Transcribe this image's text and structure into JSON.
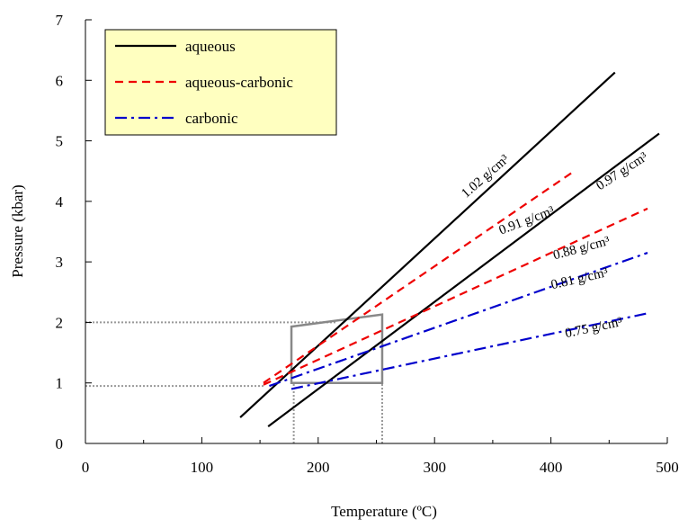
{
  "chart_data": {
    "type": "line",
    "title": "",
    "xlabel": "Temperature (ºC)",
    "ylabel": "Pressure (kbar)",
    "xlim": [
      0,
      500
    ],
    "ylim": [
      0,
      7
    ],
    "xticks": [
      0,
      100,
      200,
      300,
      400,
      500
    ],
    "yticks": [
      0,
      1,
      2,
      3,
      4,
      5,
      6,
      7
    ],
    "x_tick_labels": [
      "0",
      "100",
      "200",
      "300",
      "400",
      "500"
    ],
    "y_tick_labels": [
      "0",
      "1",
      "2",
      "3",
      "4",
      "5",
      "6",
      "7"
    ],
    "grid": false,
    "legend": {
      "placement": "top-left",
      "background": "#FFFFC0",
      "entries": [
        {
          "label": "aqueous",
          "color": "#000000",
          "dash": "solid"
        },
        {
          "label": "aqueous-carbonic",
          "color": "#EE0000",
          "dash": "dashed"
        },
        {
          "label": "carbonic",
          "color": "#0000CC",
          "dash": "dash-dot"
        }
      ]
    },
    "series": [
      {
        "group": "aqueous",
        "label": "1.02 g/cm³",
        "color": "#000000",
        "dash": "solid",
        "x": [
          133,
          455
        ],
        "y": [
          0.43,
          6.13
        ]
      },
      {
        "group": "aqueous",
        "label": "0.97 g/cm³",
        "color": "#000000",
        "dash": "solid",
        "x": [
          157,
          493
        ],
        "y": [
          0.28,
          5.12
        ]
      },
      {
        "group": "aqueous-carbonic",
        "label": "0.91 g/cm³",
        "color": "#EE0000",
        "dash": "dashed",
        "x": [
          153,
          420
        ],
        "y": [
          1.0,
          4.5
        ]
      },
      {
        "group": "aqueous-carbonic",
        "label": "0.88 g/cm³",
        "color": "#EE0000",
        "dash": "dashed",
        "x": [
          153,
          483
        ],
        "y": [
          0.97,
          3.88
        ]
      },
      {
        "group": "carbonic",
        "label": "0.81 g/cm³",
        "color": "#0000CC",
        "dash": "dash-dot",
        "x": [
          158,
          483
        ],
        "y": [
          0.95,
          3.15
        ]
      },
      {
        "group": "carbonic",
        "label": "0.75 g/cm³",
        "color": "#0000CC",
        "dash": "dash-dot",
        "x": [
          177,
          483
        ],
        "y": [
          0.9,
          2.15
        ]
      }
    ],
    "isochore_labels": [
      {
        "text": "1.02 g/cm³",
        "x": 327,
        "y": 4.05,
        "angle": -41
      },
      {
        "text": "0.97 g/cm³",
        "x": 442,
        "y": 4.18,
        "angle": -33
      },
      {
        "text": "0.91 g/cm³",
        "x": 357,
        "y": 3.45,
        "angle": -21
      },
      {
        "text": "0.88 g/cm³",
        "x": 403,
        "y": 3.04,
        "angle": -15
      },
      {
        "text": "0.81 g/cm³",
        "x": 401,
        "y": 2.55,
        "angle": -13
      },
      {
        "text": "0.75 g/cm³",
        "x": 413,
        "y": 1.75,
        "angle": -12
      }
    ],
    "box": {
      "color": "#888888",
      "x0": 177,
      "x1": 255,
      "y0": 1.0,
      "y1": 1.93,
      "y1_right": 2.13
    },
    "reference_lines": {
      "color": "#999999",
      "horizontal": [
        {
          "y": 2.0,
          "x_from": 0,
          "x_to": 215
        },
        {
          "y": 0.95,
          "x_from": 0,
          "x_to": 153
        }
      ],
      "vertical": [
        {
          "x": 179,
          "y_from": 0,
          "y_to": 1.0
        },
        {
          "x": 255,
          "y_from": 0,
          "y_to": 1.0
        }
      ]
    }
  }
}
